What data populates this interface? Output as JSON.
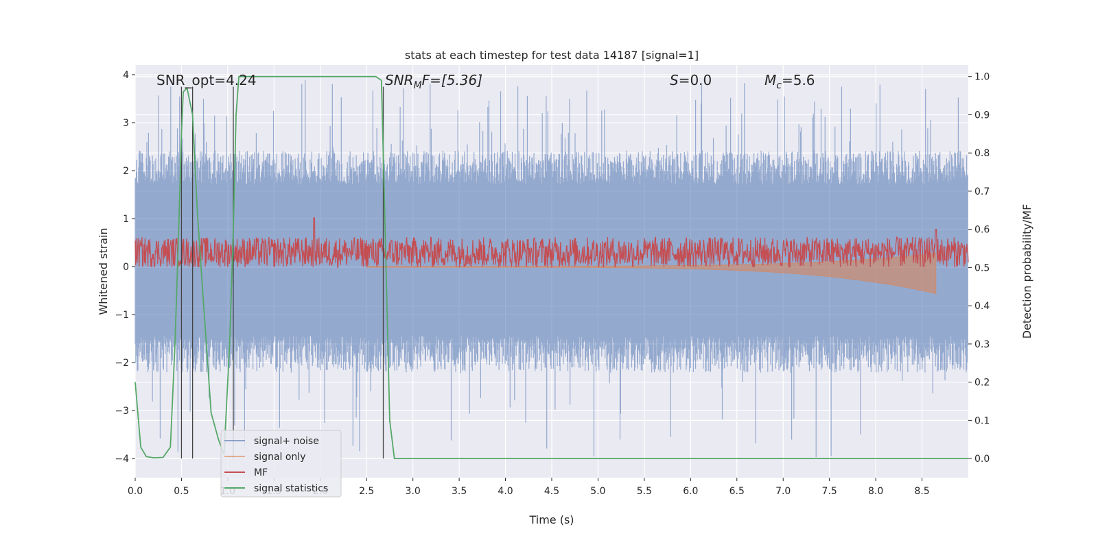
{
  "chart_data": {
    "type": "line",
    "title": "stats at each timestep for test data 14187 [signal=1]",
    "xlabel": "Time (s)",
    "ylabel": "Whitened strain",
    "ylabel_right": "Detection probability/MF",
    "xlim": [
      0.0,
      9.0
    ],
    "ylim": [
      -4.4,
      4.2
    ],
    "ylim_right": [
      -0.05,
      1.03
    ],
    "x_ticks": [
      0.0,
      0.5,
      1.0,
      1.5,
      2.0,
      2.5,
      3.0,
      3.5,
      4.0,
      4.5,
      5.0,
      5.5,
      6.0,
      6.5,
      7.0,
      7.5,
      8.0,
      8.5
    ],
    "x_tick_labels": [
      "0.0",
      "0.5",
      "1.0",
      "1.5",
      "2.0",
      "2.5",
      "3.0",
      "3.5",
      "4.0",
      "4.5",
      "5.0",
      "5.5",
      "6.0",
      "6.5",
      "7.0",
      "7.5",
      "8.0",
      "8.5"
    ],
    "y_ticks": [
      -4,
      -3,
      -2,
      -1,
      0,
      1,
      2,
      3,
      4
    ],
    "y_tick_labels": [
      "−4",
      "−3",
      "−2",
      "−1",
      "0",
      "1",
      "2",
      "3",
      "4"
    ],
    "y_right_ticks": [
      0.0,
      0.1,
      0.2,
      0.3,
      0.4,
      0.5,
      0.6,
      0.7,
      0.8,
      0.9,
      1.0
    ],
    "y_right_tick_labels": [
      "0.0",
      "0.1",
      "0.2",
      "0.3",
      "0.4",
      "0.5",
      "0.6",
      "0.7",
      "0.8",
      "0.9",
      "1.0"
    ],
    "grid": true,
    "legend_position": "lower-left",
    "annotations": {
      "snr_opt": "SNR_opt=4.24",
      "snr_mf_sym": "SNR",
      "snr_mf_sub": "M",
      "snr_mf_rest": "F=[5.36]",
      "s_sym": "S",
      "s_rest": "=0.0",
      "mc_sym": "M",
      "mc_sub": "c",
      "mc_rest": "=5.6"
    },
    "series": [
      {
        "name": "signal+ noise",
        "color": "#4C72B0",
        "axis": "left",
        "style": "dense noise band",
        "typical_range": [
          -1.7,
          2.2
        ],
        "extreme_range": [
          -4.0,
          3.9
        ]
      },
      {
        "name": "signal only",
        "color": "#DD8452",
        "axis": "left",
        "style": "chirp",
        "start_time": 2.5,
        "end_time": 8.65,
        "peak_amplitude": 0.55
      },
      {
        "name": "MF",
        "color": "#C44E52",
        "axis": "right",
        "style": "noisy trace",
        "baseline": 0.54,
        "spread": 0.04,
        "spikes": [
          {
            "x": 1.93,
            "y": 0.63
          },
          {
            "x": 8.65,
            "y": 0.6
          }
        ]
      },
      {
        "name": "signal statistics",
        "color": "#55A868",
        "axis": "right",
        "x": [
          0.0,
          0.06,
          0.12,
          0.2,
          0.3,
          0.38,
          0.43,
          0.47,
          0.5,
          0.52,
          0.56,
          0.62,
          0.67,
          0.74,
          0.82,
          0.9,
          0.96,
          1.02,
          1.06,
          1.09,
          1.12,
          2.6,
          2.66,
          2.7,
          2.75,
          2.8,
          9.0
        ],
        "y": [
          0.2,
          0.03,
          0.005,
          0.002,
          0.003,
          0.03,
          0.3,
          0.6,
          0.85,
          0.96,
          0.97,
          0.9,
          0.65,
          0.4,
          0.12,
          0.05,
          0.01,
          0.3,
          0.6,
          0.9,
          1.0,
          1.0,
          0.99,
          0.6,
          0.1,
          0.0,
          0.0
        ]
      },
      {
        "name": "detection markers",
        "color": "#444444",
        "axis": "left",
        "style": "vertical lines",
        "lines": [
          {
            "x": 0.5,
            "y_from": -4.0,
            "y_to": 3.75
          },
          {
            "x": 0.62,
            "y_from": -4.0,
            "y_to": 3.75
          },
          {
            "x": 1.06,
            "y_from": -4.0,
            "y_to": 3.75
          },
          {
            "x": 2.68,
            "y_from": -4.0,
            "y_to": 3.75
          }
        ]
      }
    ],
    "legend": [
      {
        "label": "signal+ noise",
        "color": "#4C72B0"
      },
      {
        "label": "signal only",
        "color": "#DD8452"
      },
      {
        "label": "MF",
        "color": "#C44E52"
      },
      {
        "label": "signal statistics",
        "color": "#55A868"
      }
    ]
  }
}
